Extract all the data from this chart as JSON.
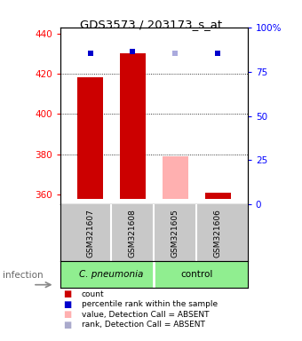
{
  "title": "GDS3573 / 203173_s_at",
  "samples": [
    "GSM321607",
    "GSM321608",
    "GSM321605",
    "GSM321606"
  ],
  "ylim_left": [
    355,
    443
  ],
  "yticks_left": [
    360,
    380,
    400,
    420,
    440
  ],
  "yticks_right": [
    0,
    25,
    50,
    75,
    100
  ],
  "yticklabels_right": [
    "0",
    "25",
    "50",
    "75",
    "100%"
  ],
  "bar_values": [
    418,
    430,
    379,
    361
  ],
  "bar_colors": [
    "#cc0000",
    "#cc0000",
    "#ffb0b0",
    "#cc0000"
  ],
  "dot_values": [
    430,
    431,
    430,
    430
  ],
  "dot_colors": [
    "#0000cc",
    "#0000cc",
    "#aaaadd",
    "#0000cc"
  ],
  "bar_bottom": 358,
  "grid_yticks": [
    380,
    400,
    420
  ],
  "sample_box_color": "#c8c8c8",
  "cp_color": "#90EE90",
  "ctrl_color": "#90EE90",
  "legend_colors": [
    "#cc0000",
    "#0000cc",
    "#ffb0b0",
    "#aaaacc"
  ],
  "legend_labels": [
    "count",
    "percentile rank within the sample",
    "value, Detection Call = ABSENT",
    "rank, Detection Call = ABSENT"
  ]
}
